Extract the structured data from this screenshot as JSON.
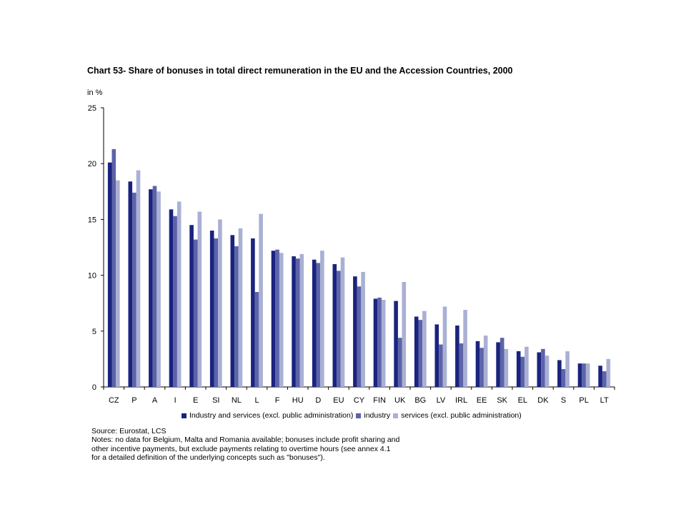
{
  "chart_data": {
    "type": "bar",
    "title": "Chart 53- Share of bonuses in total direct remuneration in the EU and the Accession Countries, 2000",
    "ylabel": "in %",
    "ylim": [
      0,
      25
    ],
    "yticks": [
      0,
      5,
      10,
      15,
      20,
      25
    ],
    "grid": false,
    "legend_position": "bottom",
    "categories": [
      "CZ",
      "P",
      "A",
      "I",
      "E",
      "SI",
      "NL",
      "L",
      "F",
      "HU",
      "D",
      "EU",
      "CY",
      "FIN",
      "UK",
      "BG",
      "LV",
      "IRL",
      "EE",
      "SK",
      "EL",
      "DK",
      "S",
      "PL",
      "LT"
    ],
    "series": [
      {
        "name": "Industry and services (excl. public administration)",
        "color": "#1a237e",
        "values": [
          20.1,
          18.4,
          17.7,
          15.9,
          14.5,
          14.0,
          13.6,
          13.3,
          12.2,
          11.7,
          11.4,
          11.0,
          9.9,
          7.9,
          7.7,
          6.3,
          5.6,
          5.5,
          4.1,
          4.0,
          3.2,
          3.1,
          2.4,
          2.1,
          1.9
        ]
      },
      {
        "name": "industry",
        "color": "#5c63a8",
        "values": [
          21.3,
          17.4,
          18.0,
          15.3,
          13.2,
          13.3,
          12.6,
          8.5,
          12.3,
          11.5,
          11.1,
          10.4,
          9.0,
          8.0,
          4.4,
          6.0,
          3.8,
          3.9,
          3.5,
          4.4,
          2.7,
          3.4,
          1.6,
          2.1,
          1.4
        ]
      },
      {
        "name": "services (excl. public administration)",
        "color": "#aab0d4",
        "values": [
          18.5,
          19.4,
          17.5,
          16.6,
          15.7,
          15.0,
          14.2,
          15.5,
          12.0,
          11.9,
          12.2,
          11.6,
          10.3,
          7.8,
          9.4,
          6.8,
          7.2,
          6.9,
          4.6,
          3.4,
          3.6,
          2.8,
          3.2,
          2.1,
          2.5
        ]
      }
    ]
  },
  "footer": {
    "source": "Source: Eurostat, LCS",
    "notes": [
      "Notes: no data for Belgium, Malta and Romania available; bonuses include profit sharing and",
      "other incentive payments, but exclude payments relating to overtime hours (see annex 4.1",
      "for a detailed definition of the underlying concepts such as \"bonuses\")."
    ]
  }
}
